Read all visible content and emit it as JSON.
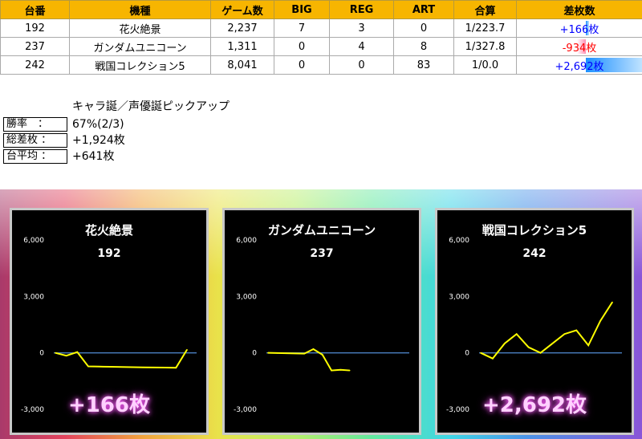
{
  "table": {
    "headers": [
      "台番",
      "機種",
      "ゲーム数",
      "BIG",
      "REG",
      "ART",
      "合算",
      "差枚数"
    ],
    "rows": [
      {
        "no": "192",
        "model": "花火絶景",
        "games": "2,237",
        "big": "7",
        "reg": "3",
        "art": "0",
        "ratio": "1/223.7",
        "diff": "+166枚",
        "diff_value": 166
      },
      {
        "no": "237",
        "model": "ガンダムユニコーン",
        "games": "1,311",
        "big": "0",
        "reg": "4",
        "art": "8",
        "ratio": "1/327.8",
        "diff": "-934枚",
        "diff_value": -934
      },
      {
        "no": "242",
        "model": "戦国コレクション5",
        "games": "8,041",
        "big": "0",
        "reg": "0",
        "art": "83",
        "ratio": "1/0.0",
        "diff": "+2,692枚",
        "diff_value": 2692
      }
    ],
    "colors": {
      "header_bg": "#f7b500",
      "positive": "#0000ff",
      "negative": "#ff0000",
      "bar_positive": "#1e90ff",
      "bar_negative": "#ff8fb3"
    }
  },
  "summary": {
    "event": "キャラ誕／声優誕ピックアップ",
    "items": [
      {
        "label": "勝率　：",
        "value": "67%(2/3)"
      },
      {
        "label": "総差枚 ：",
        "value": "+1,924枚"
      },
      {
        "label": "台平均 ：",
        "value": "+641枚"
      }
    ]
  },
  "charts": [
    {
      "title": "花火絶景",
      "number": "192",
      "diff": "+166枚",
      "show_diff": true
    },
    {
      "title": "ガンダムユニコーン",
      "number": "237",
      "diff": "",
      "show_diff": false
    },
    {
      "title": "戦国コレクション5",
      "number": "242",
      "diff": "+2,692枚",
      "show_diff": true
    }
  ],
  "chart_data": [
    {
      "type": "line",
      "title": "花火絶景",
      "yticks": [
        "6,000",
        "3,000",
        "0",
        "-3,000"
      ],
      "ylim": [
        -3000,
        6000
      ],
      "series": [
        {
          "x": [
            0,
            1,
            2,
            3,
            4,
            5,
            6,
            7,
            8,
            9,
            10,
            11,
            12
          ],
          "values": [
            0,
            -150,
            40,
            -720,
            -730,
            -740,
            -750,
            -760,
            -770,
            -775,
            -780,
            -790,
            166
          ]
        }
      ],
      "line_color": "#ffff00",
      "zero_line_color": "#4a7fc1"
    },
    {
      "type": "line",
      "title": "ガンダムユニコーン",
      "yticks": [
        "6,000",
        "3,000",
        "0",
        "-3,000"
      ],
      "ylim": [
        -3000,
        6000
      ],
      "series": [
        {
          "x": [
            0,
            1,
            2,
            3,
            4,
            5,
            6,
            7,
            8,
            9
          ],
          "values": [
            0,
            -10,
            -20,
            -30,
            -40,
            200,
            -100,
            -934,
            -900,
            -934
          ]
        }
      ],
      "line_color": "#ffff00",
      "zero_line_color": "#4a7fc1"
    },
    {
      "type": "line",
      "title": "戦国コレクション5",
      "yticks": [
        "6,000",
        "3,000",
        "0",
        "-3,000"
      ],
      "ylim": [
        -3000,
        6000
      ],
      "series": [
        {
          "x": [
            0,
            1,
            2,
            3,
            4,
            5,
            6,
            7,
            8,
            9,
            10,
            11
          ],
          "values": [
            0,
            -300,
            500,
            1000,
            300,
            0,
            500,
            1000,
            1200,
            400,
            1700,
            2692
          ]
        }
      ],
      "line_color": "#ffff00",
      "zero_line_color": "#4a7fc1"
    }
  ]
}
